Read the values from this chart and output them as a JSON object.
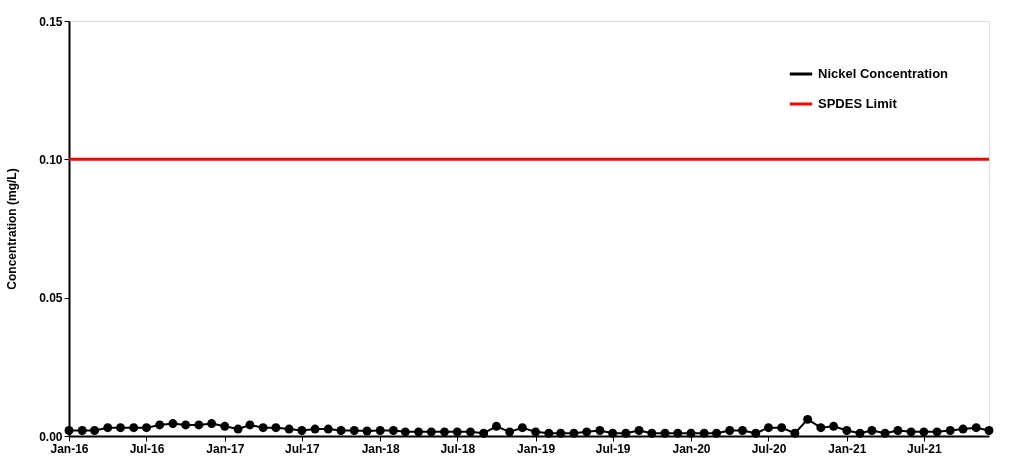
{
  "chart_data": {
    "type": "line",
    "ylabel": "Concentration (mg/L)",
    "x": [
      "2016-01",
      "2016-02",
      "2016-03",
      "2016-04",
      "2016-05",
      "2016-06",
      "2016-07",
      "2016-08",
      "2016-09",
      "2016-10",
      "2016-11",
      "2016-12",
      "2017-01",
      "2017-02",
      "2017-03",
      "2017-04",
      "2017-05",
      "2017-06",
      "2017-07",
      "2017-08",
      "2017-09",
      "2017-10",
      "2017-11",
      "2017-12",
      "2018-01",
      "2018-02",
      "2018-03",
      "2018-04",
      "2018-05",
      "2018-06",
      "2018-07",
      "2018-08",
      "2018-09",
      "2018-10",
      "2018-11",
      "2018-12",
      "2019-01",
      "2019-02",
      "2019-03",
      "2019-04",
      "2019-05",
      "2019-06",
      "2019-07",
      "2019-08",
      "2019-09",
      "2019-10",
      "2019-11",
      "2019-12",
      "2020-01",
      "2020-02",
      "2020-03",
      "2020-04",
      "2020-05",
      "2020-06",
      "2020-07",
      "2020-08",
      "2020-09",
      "2020-10",
      "2020-11",
      "2020-12",
      "2021-01",
      "2021-02",
      "2021-03",
      "2021-04",
      "2021-05",
      "2021-06",
      "2021-07",
      "2021-08",
      "2021-09",
      "2021-10",
      "2021-11",
      "2021-12"
    ],
    "series": [
      {
        "name": "Nickel Concentration",
        "color": "#000000",
        "values": [
          0.002,
          0.002,
          0.002,
          0.003,
          0.003,
          0.003,
          0.003,
          0.004,
          0.0045,
          0.004,
          0.004,
          0.0045,
          0.0035,
          0.0025,
          0.004,
          0.003,
          0.003,
          0.0025,
          0.002,
          0.0025,
          0.0025,
          0.002,
          0.002,
          0.0018,
          0.002,
          0.002,
          0.0015,
          0.0015,
          0.0015,
          0.0015,
          0.0015,
          0.0015,
          0.001,
          0.0035,
          0.0015,
          0.003,
          0.0015,
          0.001,
          0.001,
          0.001,
          0.0015,
          0.002,
          0.001,
          0.001,
          0.002,
          0.001,
          0.001,
          0.001,
          0.001,
          0.001,
          0.001,
          0.002,
          0.002,
          0.001,
          0.003,
          0.003,
          0.001,
          0.006,
          0.003,
          0.0035,
          0.002,
          0.001,
          0.002,
          0.001,
          0.002,
          0.0015,
          0.0015,
          0.0015,
          0.002,
          0.0025,
          0.003,
          0.002
        ]
      }
    ],
    "ref_lines": [
      {
        "axis": "y",
        "value": 0.1,
        "label": "SPDES Limit",
        "color": "#ff0000"
      }
    ],
    "xlim": [
      "2016-01",
      "2021-12"
    ],
    "xticks": [
      {
        "value": "2016-01",
        "label": "Jan-16"
      },
      {
        "value": "2016-07",
        "label": "Jul-16"
      },
      {
        "value": "2017-01",
        "label": "Jan-17"
      },
      {
        "value": "2017-07",
        "label": "Jul-17"
      },
      {
        "value": "2018-01",
        "label": "Jan-18"
      },
      {
        "value": "2018-07",
        "label": "Jul-18"
      },
      {
        "value": "2019-01",
        "label": "Jan-19"
      },
      {
        "value": "2019-07",
        "label": "Jul-19"
      },
      {
        "value": "2020-01",
        "label": "Jan-20"
      },
      {
        "value": "2020-07",
        "label": "Jul-20"
      },
      {
        "value": "2021-01",
        "label": "Jan-21"
      },
      {
        "value": "2021-07",
        "label": "Jul-21"
      }
    ],
    "ylim": [
      0,
      0.15
    ],
    "yticks": [
      {
        "value": 0,
        "label": "0.00"
      },
      {
        "value": 0.05,
        "label": "0.05"
      },
      {
        "value": 0.1,
        "label": "0.10"
      },
      {
        "value": 0.15,
        "label": "0.15"
      }
    ],
    "grid": false,
    "legend": "top right",
    "marker": "circle",
    "line_style": "solid"
  }
}
